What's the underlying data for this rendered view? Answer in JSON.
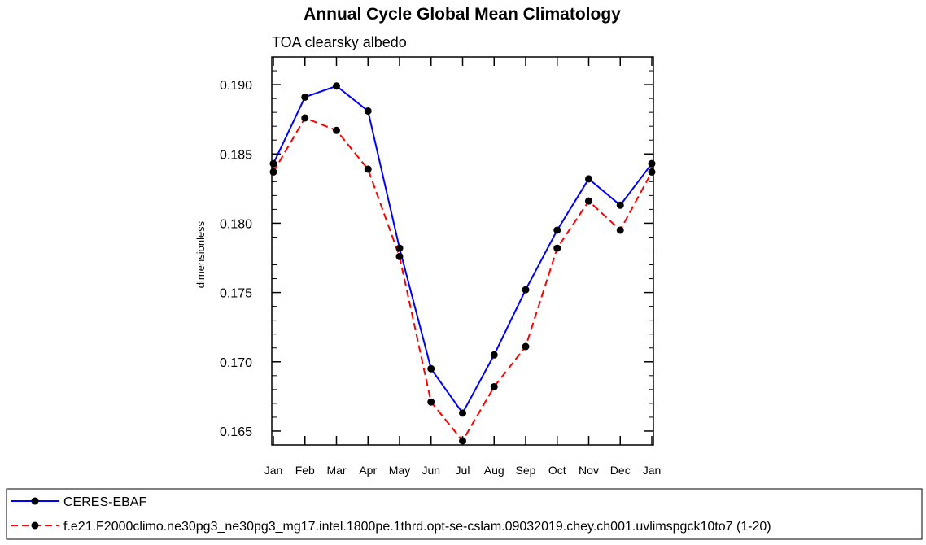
{
  "chart_data": {
    "type": "line",
    "title": "Annual Cycle Global Mean Climatology",
    "subtitle": "TOA clearsky albedo",
    "xlabel": "",
    "ylabel": "dimensionless",
    "categories": [
      "Jan",
      "Feb",
      "Mar",
      "Apr",
      "May",
      "Jun",
      "Jul",
      "Aug",
      "Sep",
      "Oct",
      "Nov",
      "Dec",
      "Jan"
    ],
    "ylim": [
      0.164,
      0.192
    ],
    "yticks": [
      0.165,
      0.17,
      0.175,
      0.18,
      0.185,
      0.19
    ],
    "ytick_labels": [
      "0.165",
      "0.170",
      "0.175",
      "0.180",
      "0.185",
      "0.190"
    ],
    "series": [
      {
        "name": "CERES-EBAF",
        "color": "#0000ff",
        "dashed": false,
        "values": [
          0.1843,
          0.1891,
          0.1899,
          0.1881,
          0.1782,
          0.1695,
          0.1663,
          0.1705,
          0.1752,
          0.1795,
          0.1832,
          0.1813,
          0.1843
        ]
      },
      {
        "name": "f.e21.F2000climo.ne30pg3_ne30pg3_mg17.intel.1800pe.1thrd.opt-se-cslam.09032019.chey.ch001.uvlimspgck10to7 (1-20)",
        "color": "#ff0000",
        "dashed": true,
        "values": [
          0.1837,
          0.1876,
          0.1867,
          0.1839,
          0.1776,
          0.1671,
          0.1643,
          0.1682,
          0.1711,
          0.1782,
          0.1816,
          0.1795,
          0.1837
        ]
      }
    ],
    "legend_position": "bottom"
  }
}
